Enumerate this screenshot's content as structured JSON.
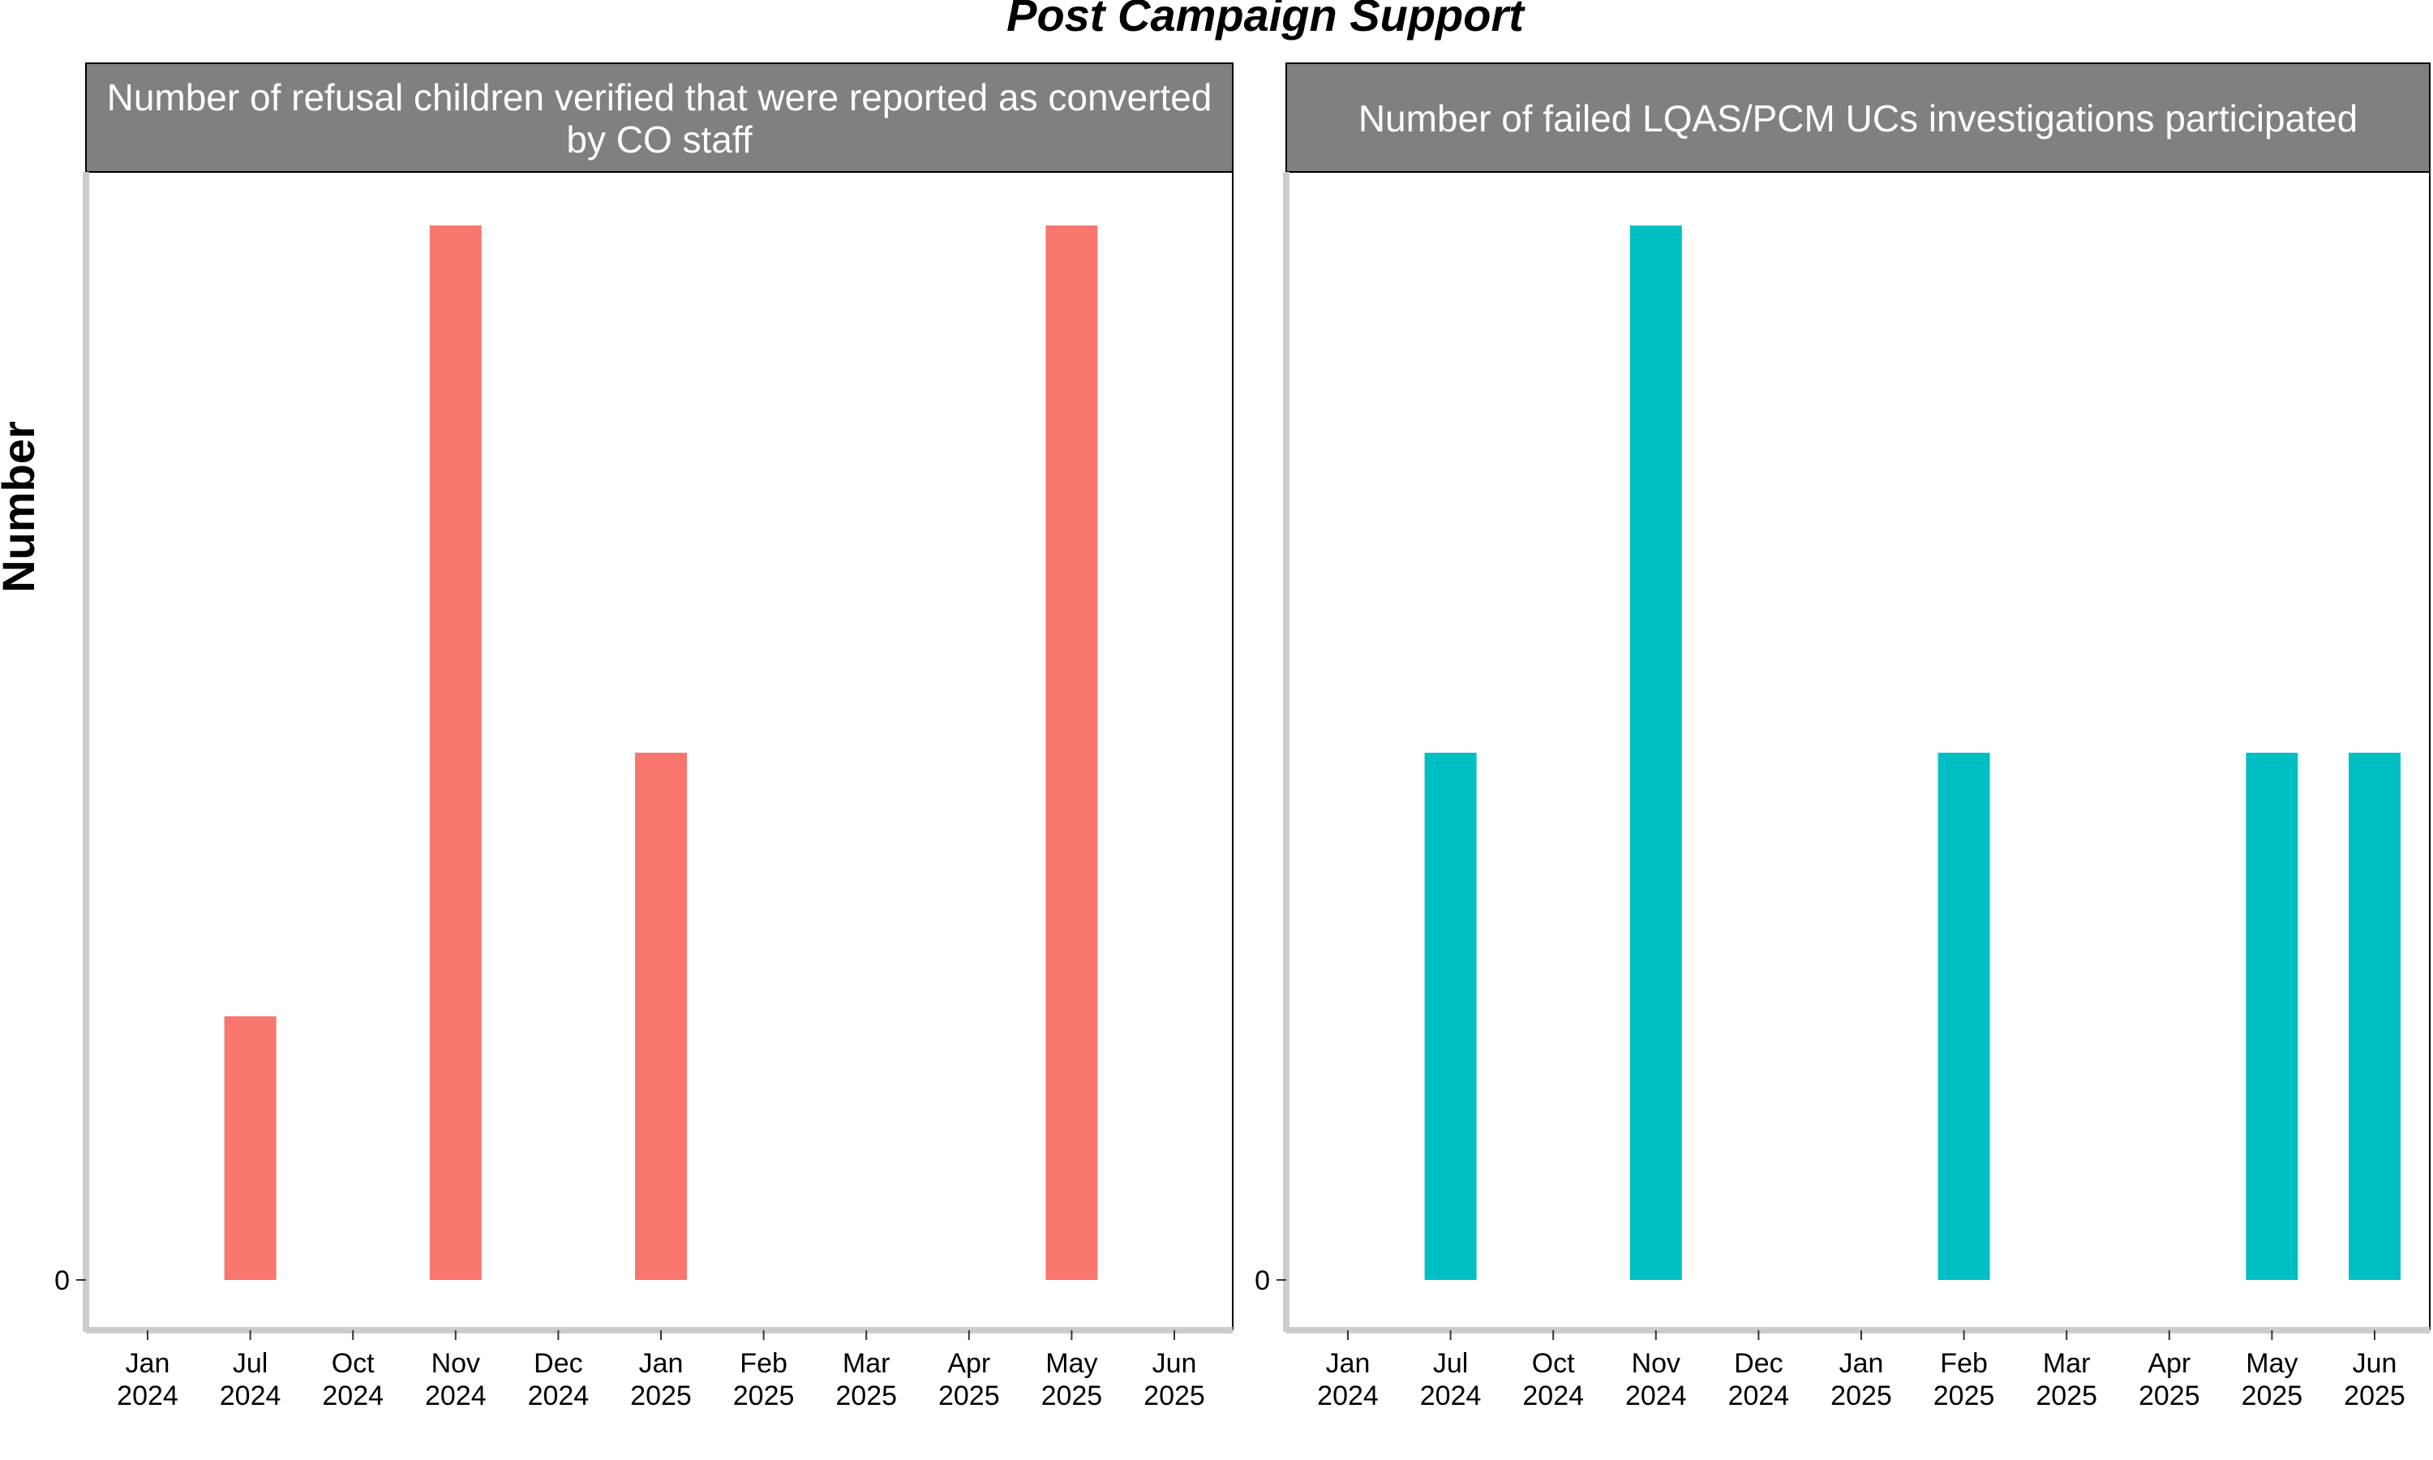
{
  "chart_data": {
    "type": "bar",
    "title": "Post Campaign Support",
    "ylabel": "Number",
    "xlabel": "",
    "categories": [
      [
        "Jan",
        "2024"
      ],
      [
        "Jul",
        "2024"
      ],
      [
        "Oct",
        "2024"
      ],
      [
        "Nov",
        "2024"
      ],
      [
        "Dec",
        "2024"
      ],
      [
        "Jan",
        "2025"
      ],
      [
        "Feb",
        "2025"
      ],
      [
        "Mar",
        "2025"
      ],
      [
        "Apr",
        "2025"
      ],
      [
        "May",
        "2025"
      ],
      [
        "Jun",
        "2025"
      ]
    ],
    "y_tick_labels": [
      "0"
    ],
    "ylim": [
      0,
      4.2
    ],
    "grid": false,
    "legend": "none",
    "panels": [
      {
        "strip_label": "Number of refusal children verified that were reported as converted by CO staff",
        "color": "#F8766D",
        "values": [
          0,
          1,
          0,
          4,
          0,
          2,
          0,
          0,
          0,
          4,
          0
        ]
      },
      {
        "strip_label": "Number of failed LQAS/PCM UCs investigations participated",
        "color": "#00BFC4",
        "values": [
          0,
          2,
          0,
          4,
          0,
          0,
          2,
          0,
          0,
          2,
          2
        ]
      }
    ],
    "colors": {
      "strip_fill": "#808080",
      "strip_text": "#ffffff",
      "axis_line": "#cccccc"
    }
  }
}
